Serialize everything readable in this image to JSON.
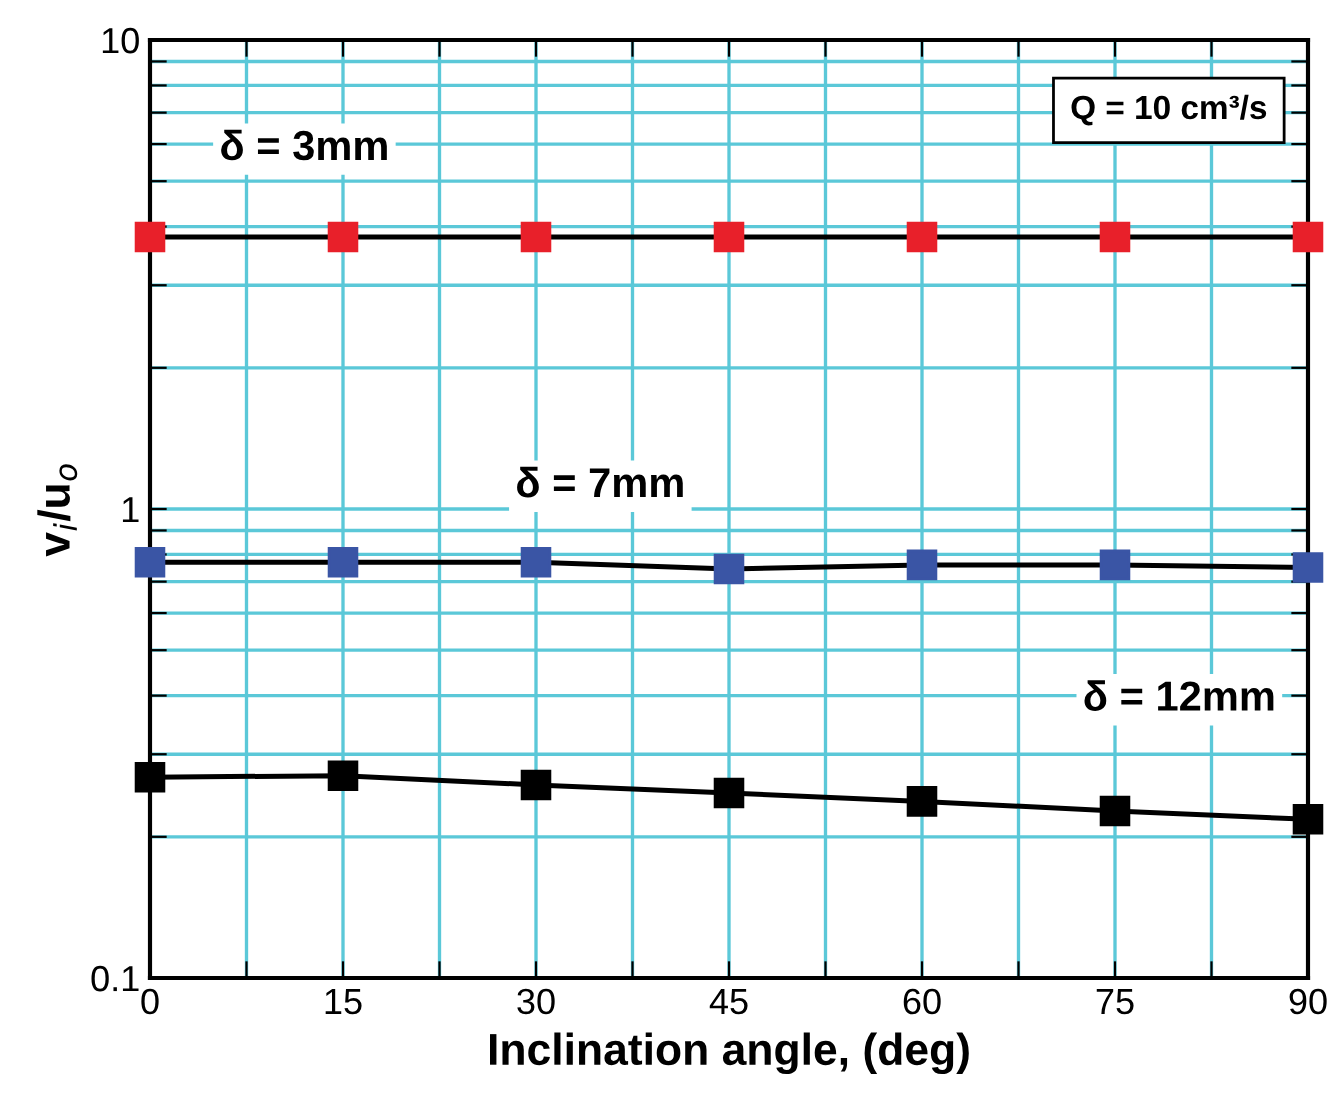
{
  "chart_data": {
    "type": "line",
    "xlabel": "Inclination angle, (deg)",
    "ylabel": "v$_{i}$/u$_{o}$",
    "x": [
      0,
      15,
      30,
      45,
      60,
      75,
      90
    ],
    "series": [
      {
        "name": "δ = 3mm",
        "color": "#e8202a",
        "values": [
          3.8,
          3.8,
          3.8,
          3.8,
          3.8,
          3.8,
          3.8
        ]
      },
      {
        "name": "δ = 7mm",
        "color": "#3a55a5",
        "values": [
          0.77,
          0.77,
          0.77,
          0.745,
          0.76,
          0.76,
          0.75
        ]
      },
      {
        "name": "δ = 12mm",
        "color": "#000000",
        "values": [
          0.268,
          0.27,
          0.258,
          0.248,
          0.238,
          0.227,
          0.218
        ]
      }
    ],
    "log": "y",
    "xlim": [
      0,
      90
    ],
    "ylim": [
      0.1,
      10
    ],
    "xticks": [
      0,
      {
        "value": 7.5,
        "label": null
      },
      15,
      {
        "value": 22.5,
        "label": null
      },
      30,
      {
        "value": 37.5,
        "label": null
      },
      45,
      {
        "value": 52.5,
        "label": null
      },
      60,
      {
        "value": 67.5,
        "label": null
      },
      75,
      {
        "value": 82.5,
        "label": null
      },
      90
    ],
    "yticks": [
      0.1,
      {
        "value": 0.2,
        "label": null
      },
      {
        "value": 0.3,
        "label": null
      },
      {
        "value": 0.4,
        "label": null
      },
      {
        "value": 0.5,
        "label": null
      },
      {
        "value": 0.6,
        "label": null
      },
      {
        "value": 0.7,
        "label": null
      },
      {
        "value": 0.8,
        "label": null
      },
      {
        "value": 0.9,
        "label": null
      },
      1,
      {
        "value": 2,
        "label": null
      },
      {
        "value": 3,
        "label": null
      },
      {
        "value": 4,
        "label": null
      },
      {
        "value": 5,
        "label": null
      },
      {
        "value": 6,
        "label": null
      },
      {
        "value": 7,
        "label": null
      },
      {
        "value": 8,
        "label": null
      },
      {
        "value": 9,
        "label": null
      },
      10
    ],
    "grid": true,
    "marker": "square",
    "line_style": "solid",
    "annotations": [
      "Q = 10 cm³/s"
    ]
  }
}
